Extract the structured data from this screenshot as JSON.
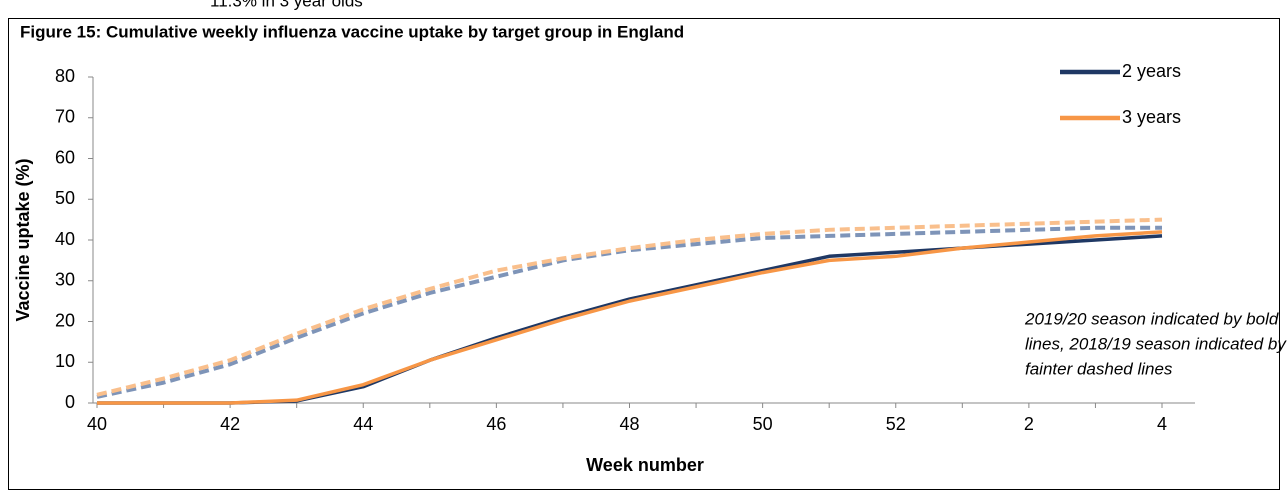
{
  "clipped_note": "11.3% in 3 year olds",
  "chart_data": {
    "type": "line",
    "title": "Figure 15: Cumulative weekly influenza vaccine uptake by target group in England",
    "x_label": "Week number",
    "y_label": "Vaccine uptake (%)",
    "annotation": [
      "2019/20 season indicated by bold",
      "lines, 2018/19 season indicated by",
      "fainter dashed lines"
    ],
    "categories": [
      "40",
      null,
      "42",
      null,
      "44",
      null,
      "46",
      null,
      "48",
      null,
      "50",
      null,
      "52",
      null,
      "2",
      null,
      "4"
    ],
    "ylim": [
      0,
      80
    ],
    "yticks": [
      0,
      10,
      20,
      30,
      40,
      50,
      60,
      70,
      80
    ],
    "legend": "top-right",
    "series": [
      {
        "name": "2 years",
        "color": "#1f3864",
        "dashed": false,
        "values": [
          0,
          0,
          0,
          0.5,
          4,
          10.5,
          16,
          21,
          25.5,
          29,
          32.5,
          36,
          37,
          38,
          39,
          40,
          41
        ]
      },
      {
        "name": "3 years",
        "color": "#f79646",
        "dashed": false,
        "values": [
          0,
          0,
          0,
          0.7,
          4.5,
          10.5,
          15.5,
          20.5,
          25,
          28.5,
          32,
          35,
          36,
          38,
          39.5,
          41,
          42
        ]
      },
      {
        "color": "#7e94b8",
        "dashed": true,
        "values": [
          1.5,
          5,
          9.5,
          16,
          22,
          27,
          31,
          35,
          37.5,
          39,
          40.5,
          41,
          41.5,
          42,
          42.5,
          43,
          43
        ]
      },
      {
        "color": "#f9bf8c",
        "dashed": true,
        "values": [
          2,
          6,
          10.5,
          17,
          23,
          28,
          32.5,
          35.5,
          38,
          40,
          41.5,
          42.5,
          43,
          43.5,
          44,
          44.5,
          45
        ]
      }
    ]
  }
}
